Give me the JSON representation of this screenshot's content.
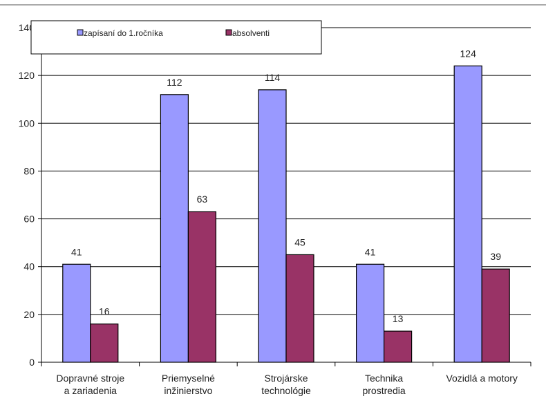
{
  "chart_data": {
    "type": "bar",
    "categories": [
      [
        "Dopravné stroje",
        "a zariadenia"
      ],
      [
        "Priemyselné",
        "inžinierstvo"
      ],
      [
        "Strojárske",
        "technológie"
      ],
      [
        "Technika",
        "prostredia"
      ],
      [
        "Vozidlá a motory"
      ]
    ],
    "series": [
      {
        "name": "zapísaní do 1.ročníka",
        "values": [
          41,
          112,
          114,
          41,
          124
        ],
        "color": "#9999ff"
      },
      {
        "name": "absolventi",
        "values": [
          16,
          63,
          45,
          13,
          39
        ],
        "color": "#993366"
      }
    ],
    "ylim": [
      0,
      140
    ],
    "yticks": [
      0,
      20,
      40,
      60,
      80,
      100,
      120,
      140
    ],
    "grid": true,
    "legend_position": "top-left"
  }
}
